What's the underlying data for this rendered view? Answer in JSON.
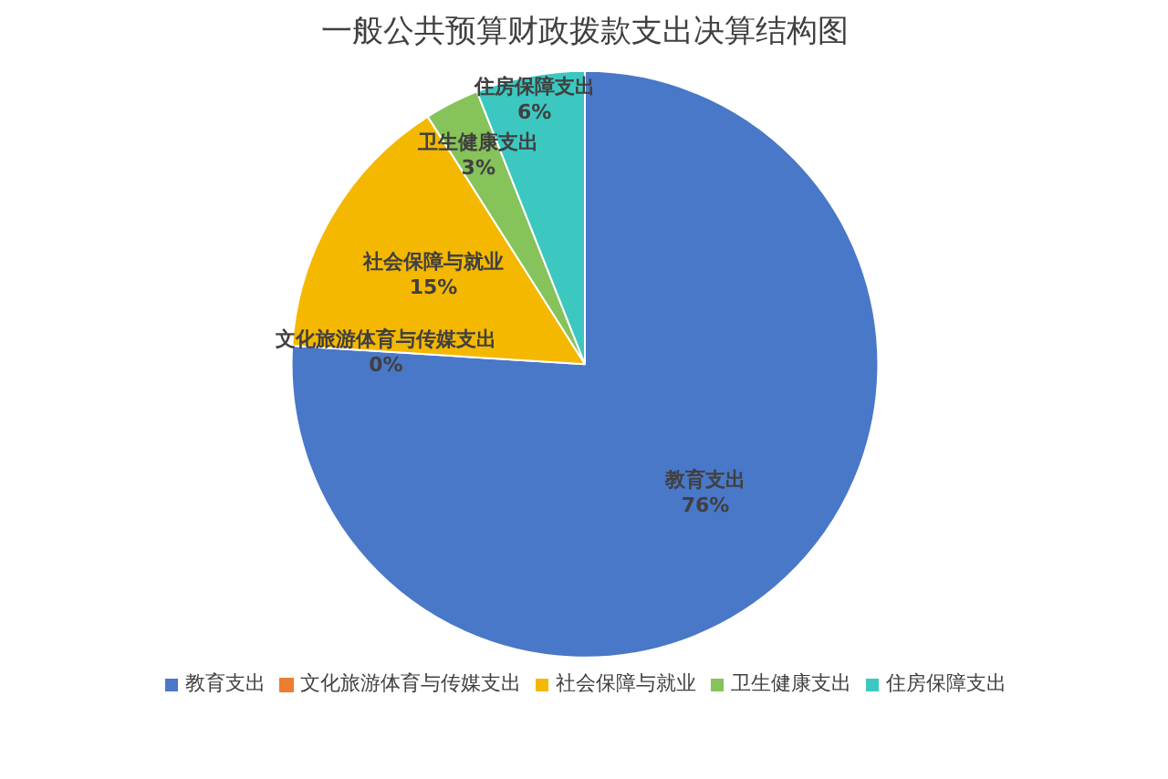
{
  "chart_data": {
    "type": "pie",
    "title": "一般公共预算财政拨款支出决算结构图",
    "categories": [
      "教育支出",
      "文化旅游体育与传媒支出",
      "社会保障与就业",
      "卫生健康支出",
      "住房保障支出"
    ],
    "values": [
      76,
      0,
      15,
      3,
      6
    ],
    "colors": [
      "#4a78c8",
      "#ed7d31",
      "#f5b800",
      "#86c35a",
      "#3cc8c0"
    ],
    "value_labels": [
      "76%",
      "0%",
      "15%",
      "3%",
      "6%"
    ],
    "legend": "bottom"
  }
}
